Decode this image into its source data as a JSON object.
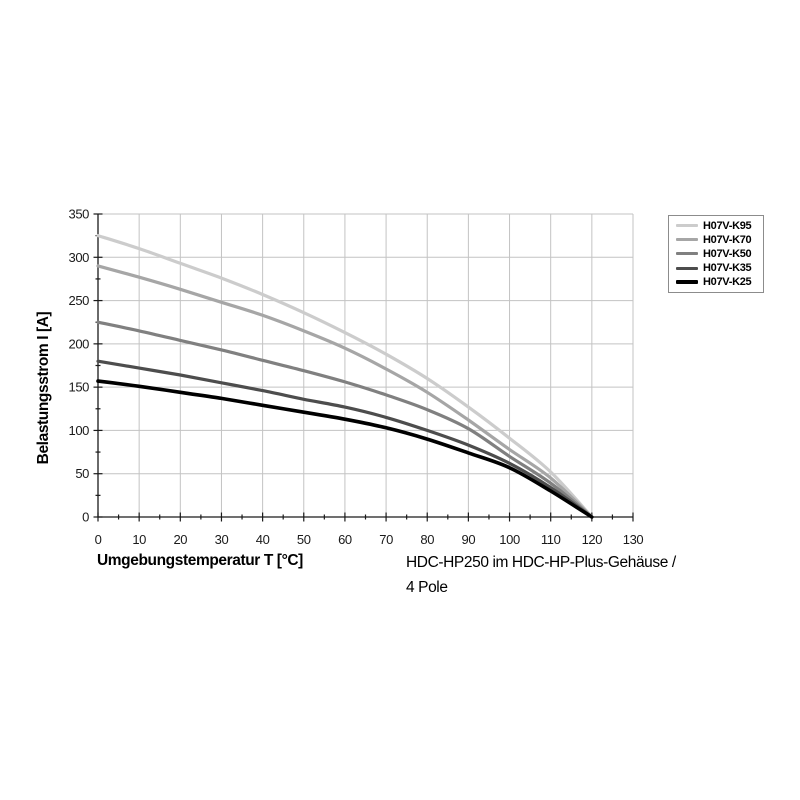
{
  "chart_data": {
    "type": "line",
    "title": "",
    "xlabel": "Umgebungstemperatur T [°C]",
    "ylabel": "Belastungsstrom I [A]",
    "caption_line1": "HDC-HP250 im HDC-HP-Plus-Gehäuse /",
    "caption_line2": "4 Pole",
    "xlim": [
      0,
      130
    ],
    "ylim": [
      0,
      350
    ],
    "x_major_step": 10,
    "x_minor_step": 5,
    "y_major_step": 50,
    "y_minor_step": 25,
    "grid": true,
    "legend_position": "top-right-outside",
    "x_tick_labels": [
      "0",
      "10",
      "20",
      "30",
      "40",
      "50",
      "60",
      "70",
      "80",
      "90",
      "100",
      "110",
      "120",
      "130"
    ],
    "y_tick_labels": [
      "0",
      "50",
      "100",
      "150",
      "200",
      "250",
      "300",
      "350"
    ],
    "x": [
      0,
      10,
      20,
      30,
      40,
      50,
      60,
      70,
      80,
      90,
      100,
      110,
      120
    ],
    "series": [
      {
        "name": "H07V-K95",
        "color": "#cccccc",
        "width": 3.2,
        "values": [
          325,
          310,
          293,
          276,
          257,
          236,
          213,
          188,
          160,
          127,
          91,
          52,
          0
        ]
      },
      {
        "name": "H07V-K70",
        "color": "#a6a6a6",
        "width": 3.2,
        "values": [
          290,
          277,
          263,
          248,
          233,
          215,
          195,
          171,
          144,
          112,
          78,
          45,
          0
        ]
      },
      {
        "name": "H07V-K50",
        "color": "#808080",
        "width": 3.2,
        "values": [
          225,
          215,
          204,
          193,
          181,
          169,
          156,
          141,
          124,
          102,
          70,
          39,
          0
        ]
      },
      {
        "name": "H07V-K35",
        "color": "#4d4d4d",
        "width": 3.2,
        "values": [
          180,
          172,
          164,
          155,
          146,
          136,
          127,
          115,
          100,
          83,
          62,
          34,
          0
        ]
      },
      {
        "name": "H07V-K25",
        "color": "#000000",
        "width": 3.6,
        "values": [
          157,
          151,
          144,
          137,
          129,
          121,
          113,
          103,
          90,
          74,
          57,
          30,
          0
        ]
      }
    ],
    "colors": {
      "grid": "#c3c3c3",
      "plot_border": "#b3b3b3",
      "axis": "#1a1a1a",
      "background": "#ffffff"
    }
  }
}
